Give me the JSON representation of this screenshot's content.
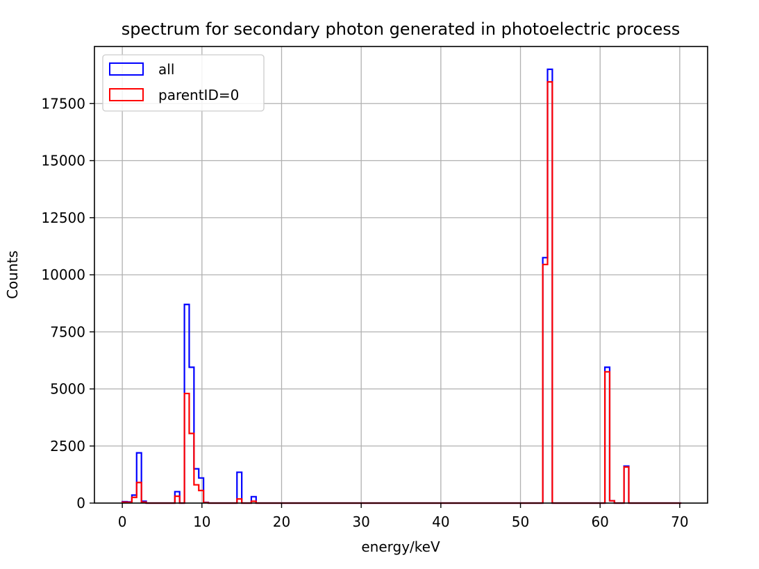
{
  "chart_data": {
    "type": "bar",
    "histogram": true,
    "title": "spectrum for secondary photon generated in photoelectric process",
    "xlabel": "energy/keV",
    "ylabel": "Counts",
    "xlim": [
      -3.5,
      73.5
    ],
    "ylim": [
      0,
      20000
    ],
    "xticks": [
      0,
      10,
      20,
      30,
      40,
      50,
      60,
      70
    ],
    "yticks": [
      0,
      2500,
      5000,
      7500,
      10000,
      12500,
      15000,
      17500
    ],
    "grid": true,
    "legend_position": "top-left",
    "bin_edges": [
      0,
      0.6,
      1.2,
      1.8,
      2.4,
      3.0,
      3.6,
      4.2,
      4.8,
      5.4,
      6.0,
      6.6,
      7.2,
      7.8,
      8.4,
      9.0,
      9.6,
      10.2,
      10.8,
      11.4,
      12.0,
      12.6,
      13.2,
      13.8,
      14.4,
      15.0,
      15.6,
      16.2,
      16.8,
      17.4,
      18.0,
      18.6,
      19.2,
      19.8,
      20.4,
      21.0,
      21.6,
      22.2,
      22.8,
      23.4,
      24.0,
      24.6,
      25.2,
      25.8,
      26.4,
      27.0,
      27.6,
      28.2,
      28.8,
      29.4,
      30.0,
      30.6,
      31.2,
      31.8,
      32.4,
      33.0,
      33.6,
      34.2,
      34.8,
      35.4,
      36.0,
      36.6,
      37.2,
      37.8,
      38.4,
      39.0,
      39.6,
      40.2,
      40.8,
      41.4,
      42.0,
      42.6,
      43.2,
      43.8,
      44.4,
      45.0,
      45.6,
      46.2,
      46.8,
      47.4,
      48.0,
      48.6,
      49.2,
      49.8,
      50.4,
      51.0,
      51.6,
      52.2,
      52.8,
      53.4,
      54.0,
      54.6,
      55.2,
      55.8,
      56.4,
      57.0,
      57.6,
      58.2,
      58.8,
      59.4,
      60.0,
      60.6,
      61.2,
      61.8,
      62.4,
      63.0,
      63.6,
      64.2,
      64.8,
      65.4,
      66.0,
      66.6,
      67.2,
      67.8,
      68.4,
      69.0,
      69.6,
      70.2
    ],
    "series": [
      {
        "name": "all",
        "color": "#0000ff",
        "values": [
          60,
          50,
          350,
          2200,
          80,
          0,
          0,
          0,
          0,
          0,
          0,
          500,
          0,
          8700,
          5950,
          1500,
          1100,
          30,
          0,
          0,
          0,
          0,
          0,
          0,
          1350,
          0,
          0,
          280,
          0,
          0,
          0,
          0,
          0,
          0,
          0,
          0,
          0,
          0,
          0,
          0,
          0,
          0,
          0,
          0,
          0,
          0,
          0,
          0,
          0,
          0,
          0,
          0,
          0,
          0,
          0,
          0,
          0,
          0,
          0,
          0,
          0,
          0,
          0,
          0,
          0,
          0,
          0,
          0,
          0,
          0,
          0,
          0,
          0,
          0,
          0,
          0,
          0,
          0,
          0,
          0,
          0,
          0,
          0,
          0,
          0,
          0,
          0,
          0,
          10750,
          19000,
          0,
          0,
          0,
          0,
          0,
          0,
          0,
          0,
          0,
          0,
          0,
          5950,
          100,
          0,
          0,
          1620,
          0,
          0,
          0,
          0,
          0,
          0,
          0,
          0,
          0,
          0,
          0
        ]
      },
      {
        "name": "parentID=0",
        "color": "#ff0000",
        "values": [
          40,
          30,
          250,
          900,
          40,
          0,
          0,
          0,
          0,
          0,
          0,
          300,
          0,
          4800,
          3050,
          800,
          550,
          20,
          0,
          0,
          0,
          0,
          0,
          0,
          180,
          0,
          0,
          80,
          0,
          0,
          0,
          0,
          0,
          0,
          0,
          0,
          0,
          0,
          0,
          0,
          0,
          0,
          0,
          0,
          0,
          0,
          0,
          0,
          0,
          0,
          0,
          0,
          0,
          0,
          0,
          0,
          0,
          0,
          0,
          0,
          0,
          0,
          0,
          0,
          0,
          0,
          0,
          0,
          0,
          0,
          0,
          0,
          0,
          0,
          0,
          0,
          0,
          0,
          0,
          0,
          0,
          0,
          0,
          0,
          0,
          0,
          0,
          0,
          10450,
          18450,
          0,
          0,
          0,
          0,
          0,
          0,
          0,
          0,
          0,
          0,
          0,
          5750,
          100,
          0,
          0,
          1580,
          0,
          0,
          0,
          0,
          0,
          0,
          0,
          0,
          0,
          0,
          0
        ]
      }
    ]
  }
}
